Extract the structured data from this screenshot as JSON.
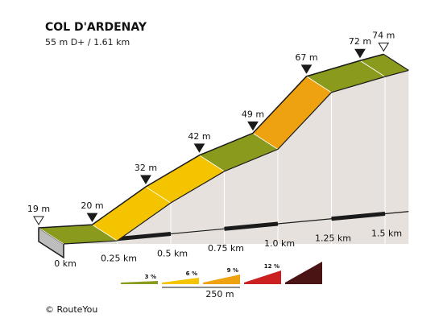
{
  "header": {
    "title": "COL D'ARDENAY",
    "subtitle": "55 m D+ / 1.61 km"
  },
  "chart_data": {
    "type": "area",
    "title": "COL D'ARDENAY",
    "subtitle": "55 m D+ / 1.61 km",
    "x_unit": "km",
    "y_unit": "m",
    "profile": [
      {
        "km": 0.0,
        "elev": 19
      },
      {
        "km": 0.25,
        "elev": 20
      },
      {
        "km": 0.5,
        "elev": 32
      },
      {
        "km": 0.75,
        "elev": 42
      },
      {
        "km": 1.0,
        "elev": 49
      },
      {
        "km": 1.25,
        "elev": 67
      },
      {
        "km": 1.5,
        "elev": 72
      },
      {
        "km": 1.61,
        "elev": 74
      }
    ],
    "segments": [
      {
        "from_km": 0.0,
        "to_km": 0.25,
        "gradient_class": "3 %",
        "color": "#8a9a1c"
      },
      {
        "from_km": 0.25,
        "to_km": 0.5,
        "gradient_class": "6 %",
        "color": "#f5c400"
      },
      {
        "from_km": 0.5,
        "to_km": 0.75,
        "gradient_class": "6 %",
        "color": "#f5c400"
      },
      {
        "from_km": 0.75,
        "to_km": 1.0,
        "gradient_class": "3 %",
        "color": "#8a9a1c"
      },
      {
        "from_km": 1.0,
        "to_km": 1.25,
        "gradient_class": "9 %",
        "color": "#eea20f"
      },
      {
        "from_km": 1.25,
        "to_km": 1.5,
        "gradient_class": "3 %",
        "color": "#8a9a1c"
      },
      {
        "from_km": 1.5,
        "to_km": 1.61,
        "gradient_class": "3 %",
        "color": "#8a9a1c"
      }
    ],
    "elevation_labels": [
      "19 m",
      "20 m",
      "32 m",
      "42 m",
      "49 m",
      "67 m",
      "72 m",
      "74 m"
    ],
    "distance_labels": [
      "0 km",
      "0.25 km",
      "0.5 km",
      "0.75 km",
      "1.0 km",
      "1.25 km",
      "1.5 km"
    ],
    "legend": [
      {
        "label": "3 %",
        "color": "#8a9a1c"
      },
      {
        "label": "6 %",
        "color": "#f5c400"
      },
      {
        "label": "9 %",
        "color": "#eea20f"
      },
      {
        "label": "12 %",
        "color": "#cc1f1f"
      },
      {
        "label": "",
        "color": "#4a1414"
      }
    ],
    "scale_label": "250 m"
  },
  "footer": {
    "copyright": "© RouteYou"
  },
  "colors": {
    "side_face": "#e6e1dc",
    "dark_edge": "#1a1a1a",
    "marker_fill": "#1a1a1a"
  }
}
